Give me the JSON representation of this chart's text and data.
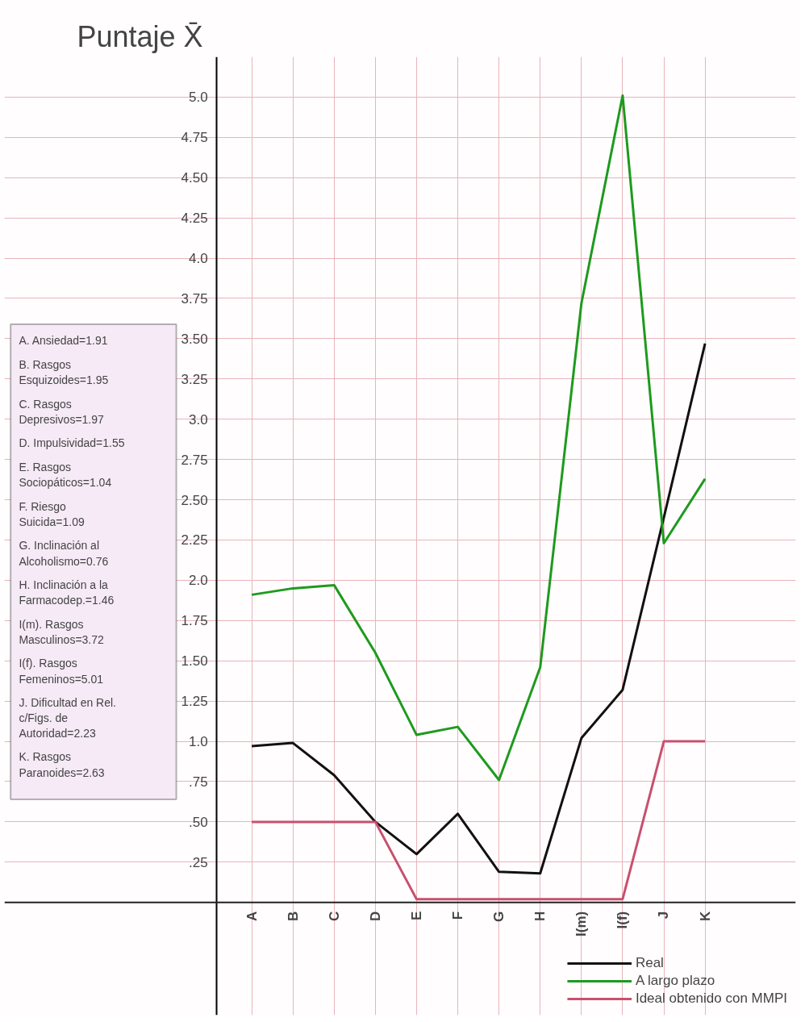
{
  "chart_data": {
    "type": "line",
    "ylabel": "Puntaje X̄",
    "categories": [
      "A",
      "B",
      "C",
      "D",
      "E",
      "F",
      "G",
      "H",
      "I(m)",
      "I(f)",
      "J",
      "K"
    ],
    "series": [
      {
        "name": "Real",
        "color": "#111111",
        "values": [
          0.97,
          0.99,
          0.79,
          0.5,
          0.3,
          0.55,
          0.19,
          0.18,
          1.02,
          1.32,
          2.39,
          3.47
        ]
      },
      {
        "name": "A largo plazo",
        "color": "#1e9a1e",
        "values": [
          1.91,
          1.95,
          1.97,
          1.55,
          1.04,
          1.09,
          0.76,
          1.46,
          3.72,
          5.01,
          2.23,
          2.63
        ]
      },
      {
        "name": "Ideal obtenido con MMPI",
        "color": "#c8506e",
        "values": [
          0.5,
          0.5,
          0.5,
          0.5,
          0.02,
          0.02,
          0.02,
          0.02,
          0.02,
          0.02,
          1.0,
          1.0
        ]
      }
    ],
    "ylim": [
      -0.7,
      5.25
    ],
    "yticks": [
      {
        "value": 0.25,
        "label": ".25"
      },
      {
        "value": 0.5,
        "label": ".50"
      },
      {
        "value": 0.75,
        "label": ".75"
      },
      {
        "value": 1,
        "label": "1.0"
      },
      1.25,
      {
        "value": 1.5,
        "label": "1.50"
      },
      1.75,
      {
        "value": 2,
        "label": "2.0"
      },
      2.25,
      {
        "value": 2.5,
        "label": "2.50"
      },
      2.75,
      {
        "value": 3,
        "label": "3.0"
      },
      3.25,
      {
        "value": 3.5,
        "label": "3.50"
      },
      3.75,
      {
        "value": 4,
        "label": "4.0"
      },
      4.25,
      {
        "value": 4.5,
        "label": "4.50"
      },
      4.75,
      {
        "value": 5,
        "label": "5.0"
      }
    ],
    "grid": true,
    "legend": "bottom right",
    "line_style": "solid",
    "marker": "none",
    "annotations": [
      "A. Ansiedad=1.91",
      "B. Rasgos\nEsquizoides=1.95",
      "C. Rasgos\nDepresivos=1.97",
      "D. Impulsividad=1.55",
      "E. Rasgos\nSociopáticos=1.04",
      "F. Riesgo\nSuicida=1.09",
      "G. Inclinación al\nAlcoholismo=0.76",
      "H. Inclinación a la\nFarmacodep.=1.46",
      "I(m). Rasgos\nMasculinos=3.72",
      "I(f). Rasgos\nFemeninos=5.01",
      "J. Dificultad en Rel.\nc/Figs. de\nAutoridad=2.23",
      "K. Rasgos\nParanoides=2.63"
    ]
  }
}
